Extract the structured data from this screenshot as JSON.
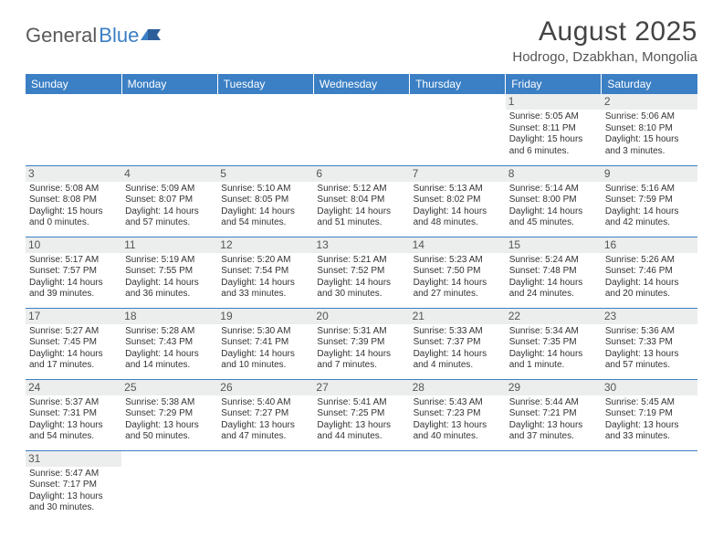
{
  "brand": {
    "part1": "General",
    "part2": "Blue"
  },
  "title": "August 2025",
  "location": "Hodrogo, Dzabkhan, Mongolia",
  "colors": {
    "header_bg": "#3b7fc4",
    "header_text": "#ffffff",
    "daynum_bg": "#eceded",
    "border": "#3b7fc4",
    "text": "#333333"
  },
  "typography": {
    "title_fontsize": 30,
    "location_fontsize": 15,
    "dayheader_fontsize": 12,
    "cell_fontsize": 10
  },
  "day_headers": [
    "Sunday",
    "Monday",
    "Tuesday",
    "Wednesday",
    "Thursday",
    "Friday",
    "Saturday"
  ],
  "weeks": [
    [
      null,
      null,
      null,
      null,
      null,
      {
        "n": "1",
        "sr": "Sunrise: 5:05 AM",
        "ss": "Sunset: 8:11 PM",
        "d1": "Daylight: 15 hours",
        "d2": "and 6 minutes."
      },
      {
        "n": "2",
        "sr": "Sunrise: 5:06 AM",
        "ss": "Sunset: 8:10 PM",
        "d1": "Daylight: 15 hours",
        "d2": "and 3 minutes."
      }
    ],
    [
      {
        "n": "3",
        "sr": "Sunrise: 5:08 AM",
        "ss": "Sunset: 8:08 PM",
        "d1": "Daylight: 15 hours",
        "d2": "and 0 minutes."
      },
      {
        "n": "4",
        "sr": "Sunrise: 5:09 AM",
        "ss": "Sunset: 8:07 PM",
        "d1": "Daylight: 14 hours",
        "d2": "and 57 minutes."
      },
      {
        "n": "5",
        "sr": "Sunrise: 5:10 AM",
        "ss": "Sunset: 8:05 PM",
        "d1": "Daylight: 14 hours",
        "d2": "and 54 minutes."
      },
      {
        "n": "6",
        "sr": "Sunrise: 5:12 AM",
        "ss": "Sunset: 8:04 PM",
        "d1": "Daylight: 14 hours",
        "d2": "and 51 minutes."
      },
      {
        "n": "7",
        "sr": "Sunrise: 5:13 AM",
        "ss": "Sunset: 8:02 PM",
        "d1": "Daylight: 14 hours",
        "d2": "and 48 minutes."
      },
      {
        "n": "8",
        "sr": "Sunrise: 5:14 AM",
        "ss": "Sunset: 8:00 PM",
        "d1": "Daylight: 14 hours",
        "d2": "and 45 minutes."
      },
      {
        "n": "9",
        "sr": "Sunrise: 5:16 AM",
        "ss": "Sunset: 7:59 PM",
        "d1": "Daylight: 14 hours",
        "d2": "and 42 minutes."
      }
    ],
    [
      {
        "n": "10",
        "sr": "Sunrise: 5:17 AM",
        "ss": "Sunset: 7:57 PM",
        "d1": "Daylight: 14 hours",
        "d2": "and 39 minutes."
      },
      {
        "n": "11",
        "sr": "Sunrise: 5:19 AM",
        "ss": "Sunset: 7:55 PM",
        "d1": "Daylight: 14 hours",
        "d2": "and 36 minutes."
      },
      {
        "n": "12",
        "sr": "Sunrise: 5:20 AM",
        "ss": "Sunset: 7:54 PM",
        "d1": "Daylight: 14 hours",
        "d2": "and 33 minutes."
      },
      {
        "n": "13",
        "sr": "Sunrise: 5:21 AM",
        "ss": "Sunset: 7:52 PM",
        "d1": "Daylight: 14 hours",
        "d2": "and 30 minutes."
      },
      {
        "n": "14",
        "sr": "Sunrise: 5:23 AM",
        "ss": "Sunset: 7:50 PM",
        "d1": "Daylight: 14 hours",
        "d2": "and 27 minutes."
      },
      {
        "n": "15",
        "sr": "Sunrise: 5:24 AM",
        "ss": "Sunset: 7:48 PM",
        "d1": "Daylight: 14 hours",
        "d2": "and 24 minutes."
      },
      {
        "n": "16",
        "sr": "Sunrise: 5:26 AM",
        "ss": "Sunset: 7:46 PM",
        "d1": "Daylight: 14 hours",
        "d2": "and 20 minutes."
      }
    ],
    [
      {
        "n": "17",
        "sr": "Sunrise: 5:27 AM",
        "ss": "Sunset: 7:45 PM",
        "d1": "Daylight: 14 hours",
        "d2": "and 17 minutes."
      },
      {
        "n": "18",
        "sr": "Sunrise: 5:28 AM",
        "ss": "Sunset: 7:43 PM",
        "d1": "Daylight: 14 hours",
        "d2": "and 14 minutes."
      },
      {
        "n": "19",
        "sr": "Sunrise: 5:30 AM",
        "ss": "Sunset: 7:41 PM",
        "d1": "Daylight: 14 hours",
        "d2": "and 10 minutes."
      },
      {
        "n": "20",
        "sr": "Sunrise: 5:31 AM",
        "ss": "Sunset: 7:39 PM",
        "d1": "Daylight: 14 hours",
        "d2": "and 7 minutes."
      },
      {
        "n": "21",
        "sr": "Sunrise: 5:33 AM",
        "ss": "Sunset: 7:37 PM",
        "d1": "Daylight: 14 hours",
        "d2": "and 4 minutes."
      },
      {
        "n": "22",
        "sr": "Sunrise: 5:34 AM",
        "ss": "Sunset: 7:35 PM",
        "d1": "Daylight: 14 hours",
        "d2": "and 1 minute."
      },
      {
        "n": "23",
        "sr": "Sunrise: 5:36 AM",
        "ss": "Sunset: 7:33 PM",
        "d1": "Daylight: 13 hours",
        "d2": "and 57 minutes."
      }
    ],
    [
      {
        "n": "24",
        "sr": "Sunrise: 5:37 AM",
        "ss": "Sunset: 7:31 PM",
        "d1": "Daylight: 13 hours",
        "d2": "and 54 minutes."
      },
      {
        "n": "25",
        "sr": "Sunrise: 5:38 AM",
        "ss": "Sunset: 7:29 PM",
        "d1": "Daylight: 13 hours",
        "d2": "and 50 minutes."
      },
      {
        "n": "26",
        "sr": "Sunrise: 5:40 AM",
        "ss": "Sunset: 7:27 PM",
        "d1": "Daylight: 13 hours",
        "d2": "and 47 minutes."
      },
      {
        "n": "27",
        "sr": "Sunrise: 5:41 AM",
        "ss": "Sunset: 7:25 PM",
        "d1": "Daylight: 13 hours",
        "d2": "and 44 minutes."
      },
      {
        "n": "28",
        "sr": "Sunrise: 5:43 AM",
        "ss": "Sunset: 7:23 PM",
        "d1": "Daylight: 13 hours",
        "d2": "and 40 minutes."
      },
      {
        "n": "29",
        "sr": "Sunrise: 5:44 AM",
        "ss": "Sunset: 7:21 PM",
        "d1": "Daylight: 13 hours",
        "d2": "and 37 minutes."
      },
      {
        "n": "30",
        "sr": "Sunrise: 5:45 AM",
        "ss": "Sunset: 7:19 PM",
        "d1": "Daylight: 13 hours",
        "d2": "and 33 minutes."
      }
    ],
    [
      {
        "n": "31",
        "sr": "Sunrise: 5:47 AM",
        "ss": "Sunset: 7:17 PM",
        "d1": "Daylight: 13 hours",
        "d2": "and 30 minutes."
      },
      null,
      null,
      null,
      null,
      null,
      null
    ]
  ]
}
